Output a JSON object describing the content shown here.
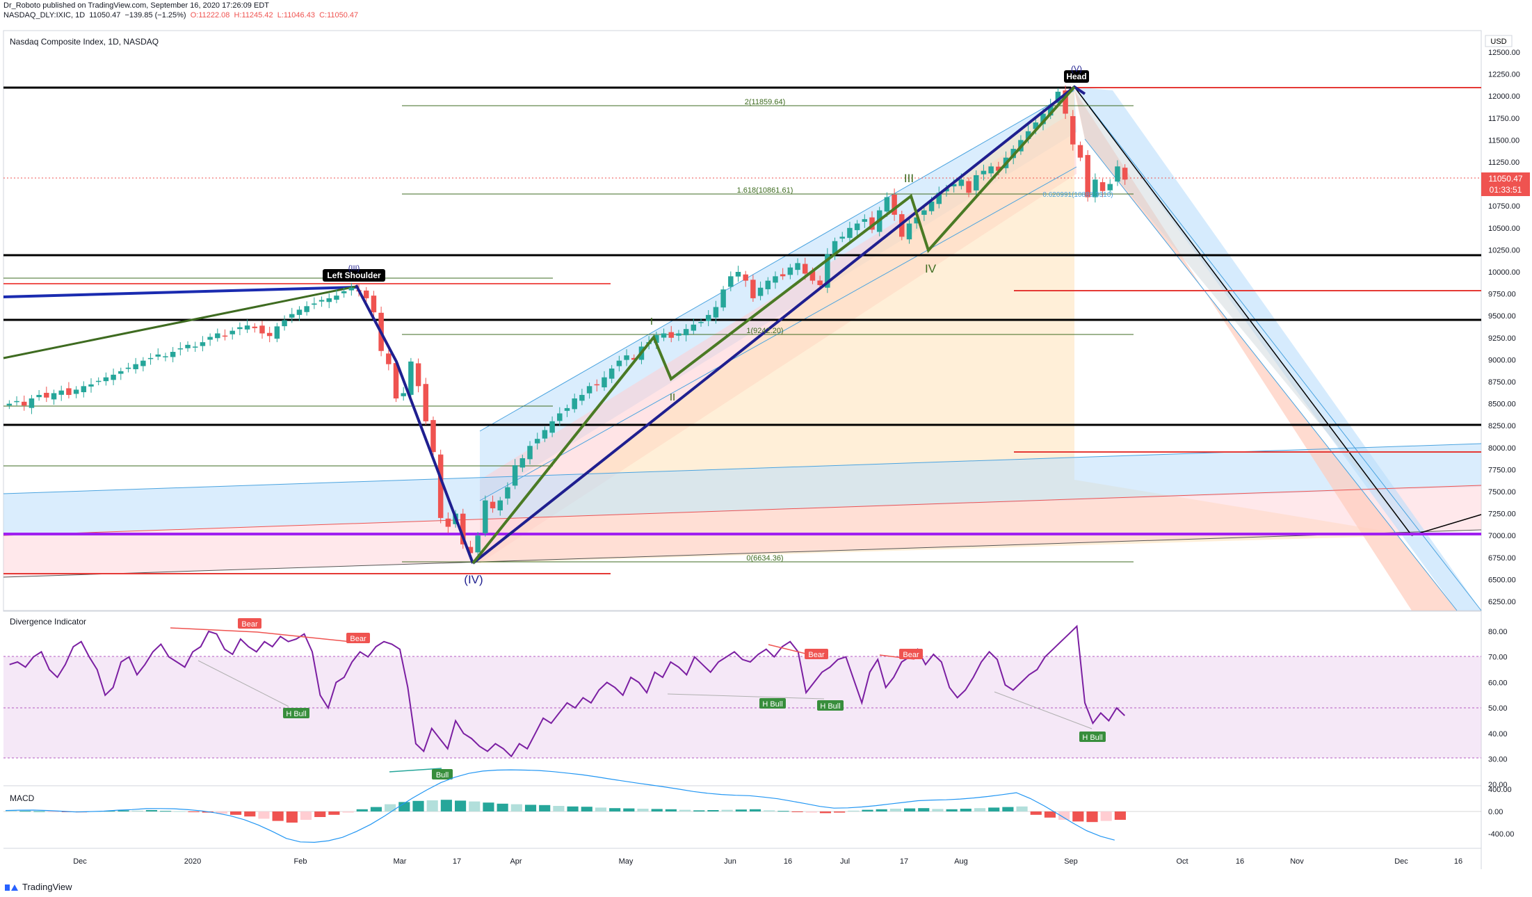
{
  "header": {
    "published_line": "Dr_Roboto published on TradingView.com, September 16, 2020 17:26:09 EDT",
    "symbol": "NASDAQ_DLY:IXIC, 1D",
    "last": "11050.47",
    "change": "−139.85 (−1.25%)",
    "open": "O:11222.08",
    "high": "H:11245.42",
    "low": "L:11046.43",
    "close": "C:11050.47"
  },
  "pane_titles": {
    "price": "Nasdaq Composite Index, 1D, NASDAQ",
    "divergence": "Divergence Indicator",
    "macd": "MACD"
  },
  "currency": "USD",
  "price_badge": {
    "price": "11050.47",
    "countdown": "01:33:51"
  },
  "annotations": {
    "head": "Head",
    "head_wave": "(V)",
    "left_shoulder": "Left Shoulder",
    "ls_wave": "(III)",
    "wave_low": "(IV)",
    "wave_i": "I",
    "wave_ii": "II",
    "wave_iii": "III",
    "wave_iv": "IV"
  },
  "fib_labels": {
    "f2": "2(11859.64)",
    "f1618": "1.618(10861.61)",
    "f1": "1(9242.20)",
    "f0": "0(6634.36)",
    "f_small": "0.620991(10889.3316)"
  },
  "divergence_labels": [
    "Bear",
    "Bear",
    "H Bull",
    "Bull",
    "Bear",
    "Bear",
    "H Bull",
    "H Bull",
    "H Bull"
  ],
  "brand": "TradingView",
  "colors": {
    "bull": "#26a69a",
    "bear": "#ef5350",
    "wave_green": "#3e6b20",
    "neckline": "#1f1f8f",
    "channel_blue": "#4aa3df",
    "purple": "#a020f0",
    "rsi_line": "#7b1fa2",
    "macd_line": "#2196f3"
  },
  "chart_data": [
    {
      "type": "candlestick",
      "title": "Nasdaq Composite Index, 1D, NASDAQ",
      "y_ticks": [
        "12500.00",
        "12250.00",
        "12000.00",
        "11750.00",
        "11500.00",
        "11250.00",
        "11000.00",
        "10750.00",
        "10500.00",
        "10250.00",
        "10000.00",
        "9750.00",
        "9500.00",
        "9250.00",
        "9000.00",
        "8750.00",
        "8500.00",
        "8250.00",
        "8000.00",
        "7750.00",
        "7500.00",
        "7250.00",
        "7000.00",
        "6750.00",
        "6500.00",
        "6250.00"
      ],
      "x_ticks": [
        "Dec",
        "2020",
        "Feb",
        "Mar",
        "17",
        "Apr",
        "May",
        "Jun",
        "16",
        "Jul",
        "17",
        "Aug",
        "Sep",
        "Oct",
        "16",
        "Nov",
        "Dec",
        "16"
      ],
      "horizontal_levels": [
        12080,
        10150,
        9420,
        8240,
        6970
      ],
      "closes": [
        8500,
        8530,
        8480,
        8560,
        8600,
        8570,
        8620,
        8650,
        8600,
        8660,
        8700,
        8720,
        8760,
        8800,
        8830,
        8870,
        8910,
        8950,
        8990,
        9020,
        9060,
        9040,
        9090,
        9130,
        9170,
        9150,
        9200,
        9260,
        9300,
        9270,
        9330,
        9370,
        9390,
        9360,
        9300,
        9270,
        9380,
        9450,
        9520,
        9570,
        9610,
        9640,
        9680,
        9700,
        9730,
        9780,
        9820,
        9790,
        9700,
        9540,
        9100,
        8950,
        8560,
        8620,
        8980,
        8700,
        8300,
        7950,
        7200,
        7100,
        7250,
        6900,
        6800,
        7000,
        7400,
        7310,
        7400,
        7550,
        7800,
        7880,
        8020,
        8100,
        8200,
        8300,
        8390,
        8450,
        8560,
        8600,
        8700,
        8710,
        8800,
        8900,
        8990,
        9050,
        9000,
        9150,
        9200,
        9280,
        9300,
        9250,
        9300,
        9350,
        9400,
        9430,
        9510,
        9600,
        9800,
        9950,
        10000,
        9900,
        9700,
        9820,
        9900,
        9950,
        9950,
        10050,
        10100,
        9980,
        9900,
        9850,
        10200,
        10350,
        10400,
        10500,
        10550,
        10600,
        10480,
        10700,
        10850,
        10650,
        10400,
        10550,
        10620,
        10700,
        10800,
        10900,
        10950,
        11000,
        11050,
        10900,
        11100,
        11150,
        11200,
        11150,
        11300,
        11400,
        11500,
        11600,
        11700,
        11800,
        11900,
        12050,
        11800,
        11450,
        11300,
        10850,
        11050,
        10920,
        11000,
        11200,
        11050
      ]
    },
    {
      "type": "line",
      "title": "Divergence Indicator",
      "y_ticks": [
        "80.00",
        "70.00",
        "60.00",
        "50.00",
        "40.00",
        "30.00",
        "20.00"
      ],
      "band": [
        30,
        70
      ],
      "values": [
        67,
        68,
        66,
        70,
        72,
        65,
        62,
        67,
        74,
        76,
        70,
        65,
        55,
        58,
        68,
        70,
        63,
        67,
        72,
        75,
        70,
        68,
        66,
        72,
        74,
        80,
        79,
        73,
        71,
        77,
        74,
        72,
        76,
        74,
        78,
        76,
        77,
        79,
        72,
        55,
        50,
        60,
        62,
        68,
        72,
        70,
        74,
        76,
        75,
        73,
        58,
        36,
        33,
        42,
        38,
        34,
        45,
        40,
        38,
        35,
        33,
        36,
        34,
        31,
        36,
        34,
        40,
        46,
        44,
        48,
        52,
        50,
        54,
        52,
        57,
        60,
        58,
        55,
        62,
        60,
        56,
        64,
        62,
        68,
        66,
        63,
        70,
        67,
        64,
        68,
        70,
        72,
        69,
        68,
        71,
        73,
        70,
        74,
        76,
        72,
        56,
        60,
        64,
        66,
        69,
        70,
        61,
        52,
        64,
        69,
        58,
        62,
        68,
        70,
        73,
        67,
        71,
        68,
        58,
        54,
        57,
        62,
        68,
        72,
        69,
        59,
        57,
        60,
        63,
        65,
        70,
        73,
        76,
        79,
        82,
        52,
        44,
        48,
        45,
        50,
        47
      ]
    },
    {
      "type": "histogram",
      "title": "MACD",
      "y_ticks": [
        "400.00",
        "0.00",
        "-400.00"
      ],
      "values": [
        20,
        10,
        5,
        -5,
        -10,
        -15,
        5,
        10,
        20,
        15,
        25,
        10,
        5,
        -10,
        -20,
        -40,
        -60,
        -90,
        -130,
        -170,
        -200,
        -150,
        -100,
        -60,
        -20,
        40,
        80,
        130,
        170,
        190,
        200,
        210,
        195,
        180,
        160,
        140,
        130,
        120,
        115,
        100,
        90,
        85,
        70,
        60,
        55,
        50,
        45,
        40,
        30,
        20,
        25,
        30,
        35,
        40,
        20,
        10,
        -10,
        -20,
        -30,
        -20,
        15,
        30,
        40,
        50,
        55,
        60,
        45,
        40,
        50,
        60,
        70,
        80,
        90,
        -60,
        -110,
        -150,
        -180,
        -190,
        -170,
        -150
      ]
    }
  ]
}
